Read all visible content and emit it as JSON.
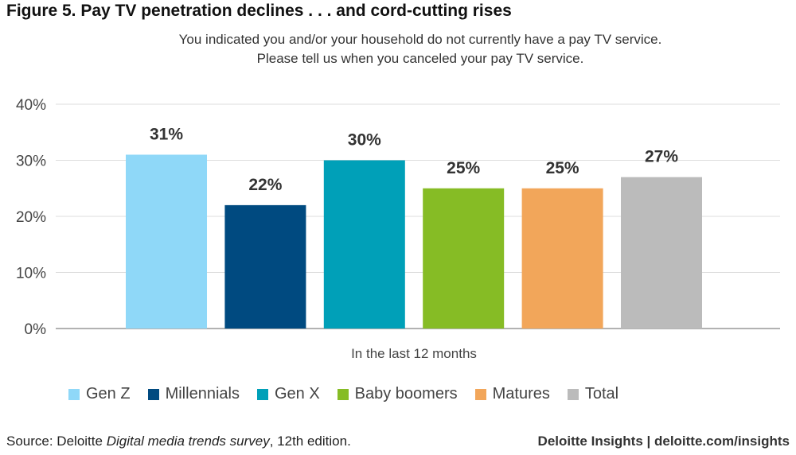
{
  "figure_title": "Figure 5. Pay TV penetration declines . . . and cord-cutting rises",
  "question_line1": "You indicated you and/or your household do not currently have a pay TV service.",
  "question_line2": "Please tell us when you canceled your pay TV service.",
  "chart_data": {
    "type": "bar",
    "title": "You indicated you and/or your household do not currently have a pay TV service. Please tell us when you canceled your pay TV service.",
    "xlabel": "In the last 12 months",
    "ylabel": "",
    "ylim": [
      0,
      40
    ],
    "yticks": [
      "0%",
      "10%",
      "20%",
      "30%",
      "40%"
    ],
    "grid": true,
    "legend_position": "bottom",
    "categories": [
      "In the last 12 months"
    ],
    "series": [
      {
        "name": "Gen Z",
        "values": [
          31
        ],
        "label": "31%",
        "color": "#8fd8f8"
      },
      {
        "name": "Millennials",
        "values": [
          22
        ],
        "label": "22%",
        "color": "#004a80"
      },
      {
        "name": "Gen X",
        "values": [
          30
        ],
        "label": "30%",
        "color": "#00a0b8"
      },
      {
        "name": "Baby boomers",
        "values": [
          25
        ],
        "label": "25%",
        "color": "#86bc25"
      },
      {
        "name": "Matures",
        "values": [
          25
        ],
        "label": "25%",
        "color": "#f2a65a"
      },
      {
        "name": "Total",
        "values": [
          27
        ],
        "label": "27%",
        "color": "#bbbbbb"
      }
    ]
  },
  "source": {
    "prefix": "Source: Deloitte ",
    "italic": "Digital media trends survey",
    "suffix": ", 12th edition."
  },
  "brand": "Deloitte Insights | deloitte.com/insights"
}
